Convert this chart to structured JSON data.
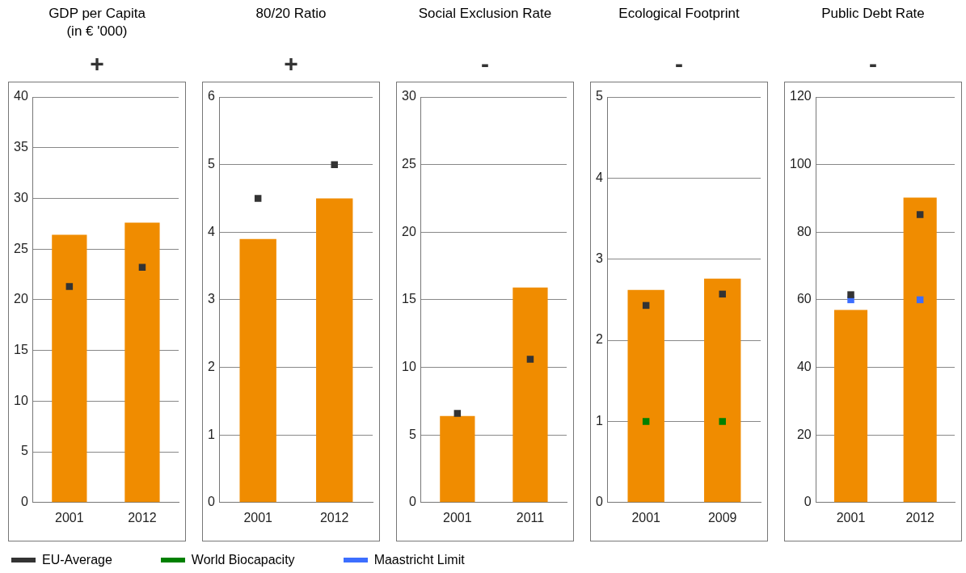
{
  "chart_data": [
    {
      "type": "bar",
      "title": "GDP per Capita\n(in € '000)",
      "subtitle": "+",
      "categories": [
        "2001",
        "2012"
      ],
      "grid": "y",
      "legend": "bottom",
      "marker": "square",
      "ylim": [
        0,
        40
      ],
      "yticks": [
        0,
        5,
        10,
        15,
        20,
        25,
        30,
        35,
        40
      ],
      "series": [
        {
          "color": "#f08c00",
          "values": [
            26.4,
            27.6
          ]
        },
        {
          "name": "EU-Average",
          "type": "scatter",
          "color": "#333333",
          "values": [
            21.3,
            23.2
          ]
        }
      ]
    },
    {
      "type": "bar",
      "title": "80/20 Ratio",
      "subtitle": "+",
      "categories": [
        "2001",
        "2012"
      ],
      "grid": "y",
      "marker": "square",
      "ylim": [
        0,
        6
      ],
      "yticks": [
        0,
        1,
        2,
        3,
        4,
        5,
        6
      ],
      "series": [
        {
          "color": "#f08c00",
          "values": [
            3.9,
            4.5
          ]
        },
        {
          "name": "EU-Average",
          "type": "scatter",
          "color": "#333333",
          "values": [
            4.5,
            5.0
          ]
        }
      ]
    },
    {
      "type": "bar",
      "title": "Social Exclusion Rate",
      "subtitle": "-",
      "categories": [
        "2001",
        "2011"
      ],
      "grid": "y",
      "marker": "square",
      "ylim": [
        0,
        30
      ],
      "yticks": [
        0,
        5,
        10,
        15,
        20,
        25,
        30
      ],
      "series": [
        {
          "color": "#f08c00",
          "values": [
            6.4,
            15.9
          ]
        },
        {
          "name": "EU-Average",
          "type": "scatter",
          "color": "#333333",
          "values": [
            6.6,
            10.6
          ]
        }
      ]
    },
    {
      "type": "bar",
      "title": "Ecological Footprint",
      "subtitle": "-",
      "categories": [
        "2001",
        "2009"
      ],
      "grid": "y",
      "legend": "bottom",
      "marker": "square",
      "ylim": [
        0,
        5
      ],
      "yticks": [
        0,
        1,
        2,
        3,
        4,
        5
      ],
      "series": [
        {
          "color": "#f08c00",
          "values": [
            2.62,
            2.76
          ]
        },
        {
          "name": "EU-Average",
          "type": "scatter",
          "color": "#333333",
          "values": [
            2.43,
            2.57
          ]
        },
        {
          "name": "World Biocapacity",
          "type": "scatter",
          "color": "#008000",
          "values": [
            1.0,
            1.0
          ]
        }
      ]
    },
    {
      "type": "bar",
      "title": "Public Debt Rate",
      "subtitle": "-",
      "categories": [
        "2001",
        "2012"
      ],
      "grid": "y",
      "legend": "bottom",
      "marker": "square",
      "ylim": [
        0,
        120
      ],
      "yticks": [
        0,
        20,
        40,
        60,
        80,
        100,
        120
      ],
      "series": [
        {
          "color": "#f08c00",
          "values": [
            57,
            90.2
          ]
        },
        {
          "name": "EU-Average",
          "type": "scatter",
          "color": "#333333",
          "values": [
            61.5,
            85.2
          ]
        },
        {
          "name": "Maastricht Limit",
          "type": "scatter",
          "color": "#3c6eff",
          "values": [
            60,
            60
          ]
        }
      ]
    }
  ]
}
